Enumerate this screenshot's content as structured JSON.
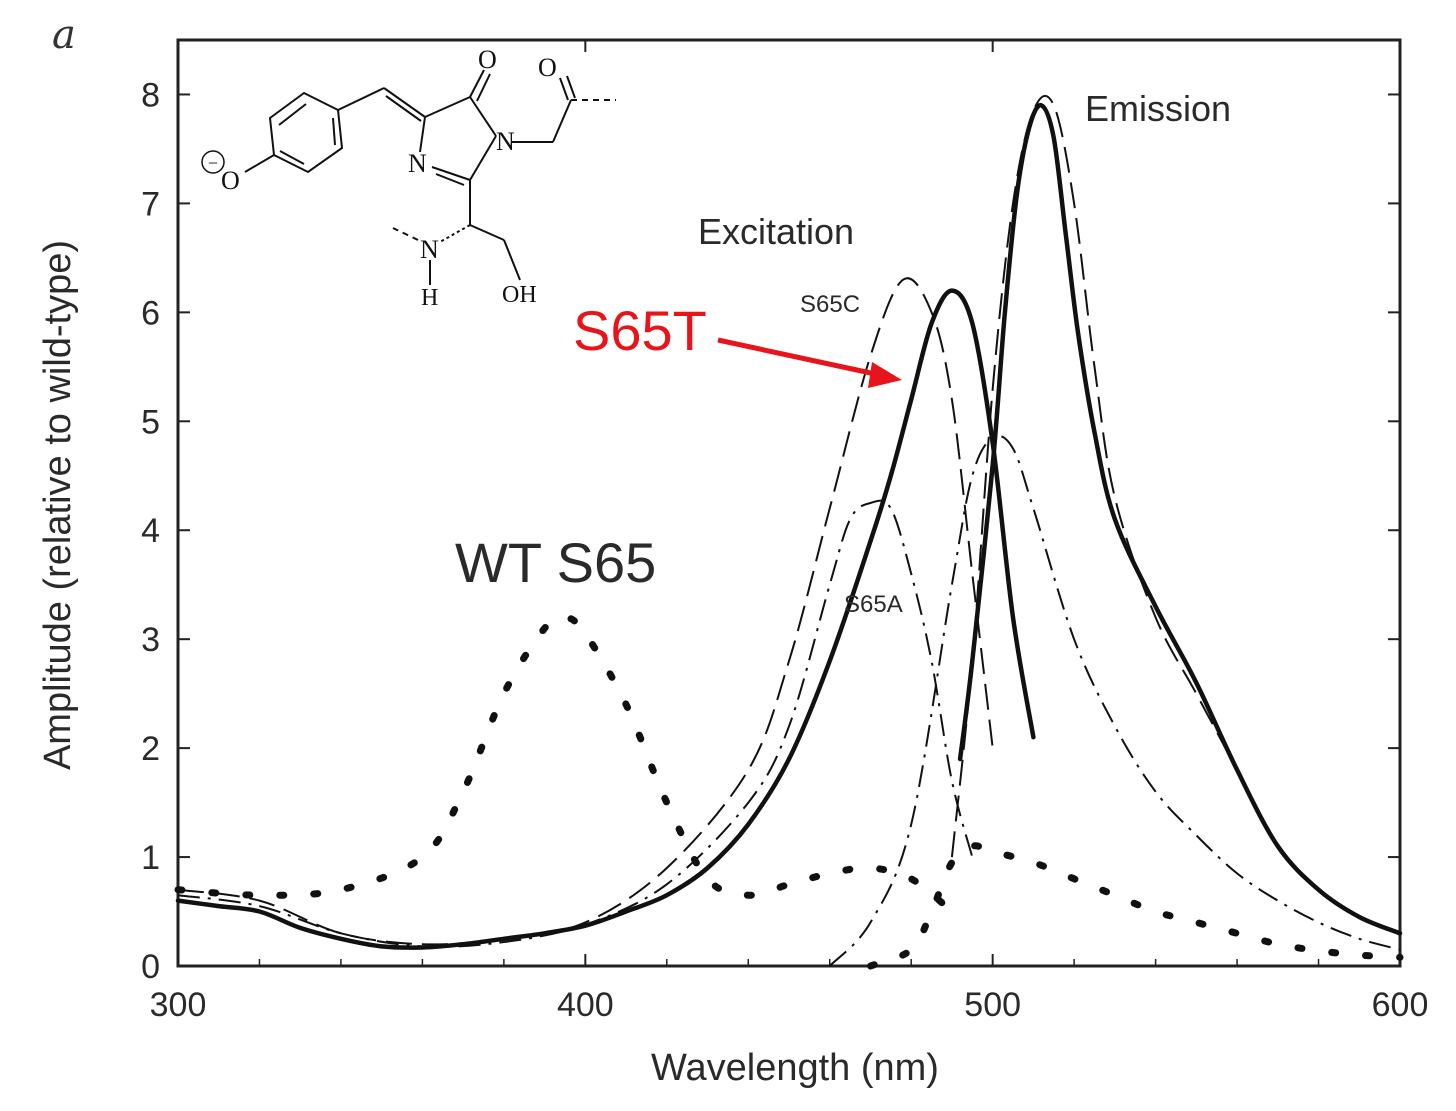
{
  "colors": {
    "axis": "#222222",
    "curves": "#111111",
    "highlight": "#e8141b",
    "background": "#ffffff"
  },
  "chart_data": {
    "type": "line",
    "panel_label": "a",
    "title": "",
    "xlabel": "Wavelength (nm)",
    "ylabel": "Amplitude (relative to wild-type)",
    "xlim": [
      300,
      600
    ],
    "ylim": [
      0,
      8.5
    ],
    "xticks": [
      300,
      400,
      500,
      600
    ],
    "yticks": [
      0,
      1,
      2,
      3,
      4,
      5,
      6,
      7,
      8
    ],
    "grid": false,
    "annotations": {
      "excitation": "Excitation",
      "emission": "Emission",
      "s65c": "S65C",
      "s65a": "S65A",
      "s65t": "S65T",
      "wt": "WT S65"
    },
    "chromophore_labels": {
      "o_minus": "O",
      "minus": "−",
      "o_carbonyl": "O",
      "o_acyl": "O",
      "n_ring_top": "N",
      "n_ring_bottom": "N",
      "n_amide": "N",
      "h_amide": "H",
      "oh": "OH"
    },
    "series": [
      {
        "name": "S65T",
        "group": "excitation",
        "style": "solid-thick",
        "x": [
          300,
          310,
          320,
          330,
          340,
          350,
          360,
          370,
          380,
          390,
          400,
          410,
          420,
          430,
          440,
          450,
          460,
          470,
          475,
          480,
          485,
          490,
          495,
          500,
          505,
          510
        ],
        "y": [
          0.6,
          0.55,
          0.5,
          0.35,
          0.25,
          0.18,
          0.17,
          0.2,
          0.25,
          0.3,
          0.37,
          0.5,
          0.65,
          0.9,
          1.3,
          1.9,
          2.8,
          3.9,
          4.5,
          5.2,
          5.9,
          6.2,
          5.9,
          4.8,
          3.2,
          2.1
        ]
      },
      {
        "name": "S65T",
        "group": "emission",
        "style": "solid-thick",
        "x": [
          492,
          495,
          500,
          503,
          506,
          509,
          512,
          515,
          518,
          521,
          525,
          530,
          540,
          550,
          560,
          570,
          580,
          590,
          600
        ],
        "y": [
          1.9,
          2.8,
          4.6,
          6.0,
          7.1,
          7.7,
          7.9,
          7.6,
          6.7,
          5.8,
          4.9,
          4.1,
          3.3,
          2.6,
          1.8,
          1.1,
          0.7,
          0.45,
          0.3
        ]
      },
      {
        "name": "S65C",
        "group": "excitation",
        "style": "long-dash",
        "x": [
          300,
          320,
          340,
          360,
          380,
          400,
          420,
          440,
          450,
          460,
          470,
          478,
          485,
          490,
          495,
          500
        ],
        "y": [
          0.7,
          0.6,
          0.3,
          0.2,
          0.25,
          0.4,
          0.9,
          1.8,
          2.8,
          4.2,
          5.6,
          6.3,
          6.0,
          5.2,
          3.6,
          2.0
        ]
      },
      {
        "name": "S65C",
        "group": "emission",
        "style": "long-dash",
        "x": [
          490,
          495,
          500,
          505,
          510,
          515,
          520,
          525,
          530,
          540,
          550,
          560,
          570,
          580,
          590,
          600
        ],
        "y": [
          1.0,
          2.8,
          5.3,
          7.0,
          7.85,
          7.9,
          7.0,
          5.5,
          4.3,
          3.2,
          2.5,
          1.8,
          1.1,
          0.7,
          0.45,
          0.3
        ]
      },
      {
        "name": "S65A",
        "group": "excitation",
        "style": "dash-dot",
        "x": [
          300,
          320,
          340,
          360,
          380,
          400,
          420,
          440,
          450,
          460,
          465,
          470,
          475,
          480,
          485,
          490,
          495
        ],
        "y": [
          0.65,
          0.55,
          0.3,
          0.18,
          0.22,
          0.38,
          0.75,
          1.5,
          2.2,
          3.5,
          4.1,
          4.25,
          4.2,
          3.6,
          2.8,
          1.7,
          1.0
        ]
      },
      {
        "name": "S65A",
        "group": "emission",
        "style": "dash-dot",
        "x": [
          460,
          470,
          480,
          490,
          495,
          500,
          505,
          510,
          520,
          530,
          540,
          550,
          560,
          570,
          580,
          590,
          600
        ],
        "y": [
          0.0,
          0.4,
          1.3,
          3.5,
          4.5,
          4.85,
          4.75,
          4.2,
          3.0,
          2.2,
          1.6,
          1.2,
          0.85,
          0.6,
          0.4,
          0.25,
          0.15
        ]
      },
      {
        "name": "WT S65",
        "group": "excitation",
        "style": "dotted",
        "x": [
          300,
          320,
          340,
          360,
          370,
          380,
          390,
          395,
          400,
          410,
          420,
          430,
          440,
          450,
          460,
          470,
          480,
          490
        ],
        "y": [
          0.7,
          0.65,
          0.7,
          1.0,
          1.6,
          2.5,
          3.1,
          3.2,
          3.05,
          2.4,
          1.5,
          0.8,
          0.65,
          0.75,
          0.85,
          0.9,
          0.8,
          0.5
        ]
      },
      {
        "name": "WT S65",
        "group": "emission",
        "style": "dotted",
        "x": [
          470,
          480,
          485,
          490,
          495,
          500,
          510,
          520,
          530,
          540,
          550,
          560,
          570,
          580,
          590,
          600
        ],
        "y": [
          0.0,
          0.15,
          0.5,
          0.95,
          1.1,
          1.05,
          0.95,
          0.8,
          0.65,
          0.5,
          0.4,
          0.3,
          0.2,
          0.14,
          0.1,
          0.08
        ]
      }
    ]
  }
}
